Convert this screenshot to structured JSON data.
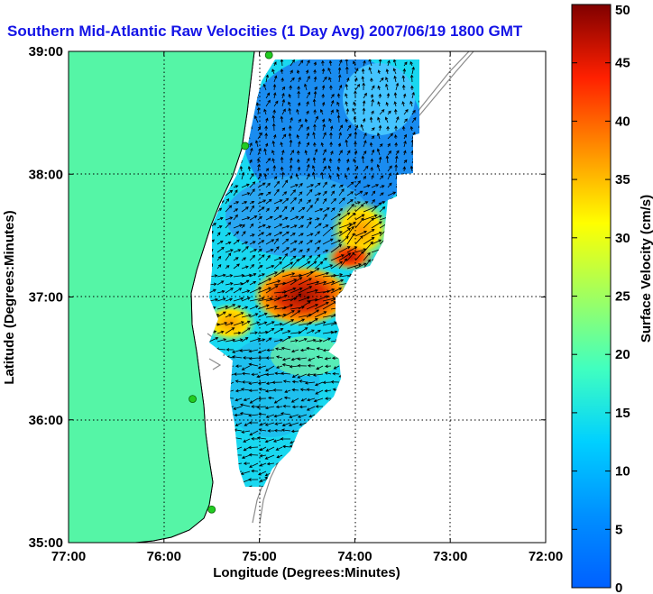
{
  "title": "Southern Mid-Atlantic Raw Velocities (1 Day Avg) 2007/06/19 1800 GMT",
  "colors": {
    "title": "#1414e6",
    "land": "#55f5a6",
    "coast": "#000000",
    "isobath": "#8c8c8c",
    "site": "#22cc22",
    "vector": "#000000"
  },
  "map": {
    "xlabel": "Longitude (Degrees:Minutes)",
    "ylabel": "Latitude (Degrees:Minutes)",
    "lon_range": [
      -77,
      -72
    ],
    "lat_range": [
      35,
      39
    ],
    "x_ticks": [
      {
        "value": -77,
        "label": "77:00"
      },
      {
        "value": -76,
        "label": "76:00"
      },
      {
        "value": -75,
        "label": "75:00"
      },
      {
        "value": -74,
        "label": "74:00"
      },
      {
        "value": -73,
        "label": "73:00"
      },
      {
        "value": -72,
        "label": "72:00"
      }
    ],
    "y_ticks": [
      {
        "value": 35,
        "label": "35:00"
      },
      {
        "value": 36,
        "label": "36:00"
      },
      {
        "value": 37,
        "label": "37:00"
      },
      {
        "value": 38,
        "label": "38:00"
      },
      {
        "value": 39,
        "label": "39:00"
      }
    ],
    "grid": "dotted",
    "radar_sites": [
      {
        "lon": -74.9,
        "lat": 38.97
      },
      {
        "lon": -75.15,
        "lat": 38.23
      },
      {
        "lon": -75.7,
        "lat": 36.17
      },
      {
        "lon": -75.5,
        "lat": 35.27
      }
    ]
  },
  "colorbar": {
    "label": "Surface Velocity (cm/s)",
    "range": [
      0,
      50
    ],
    "ticks": [
      0,
      5,
      10,
      15,
      20,
      25,
      30,
      35,
      40,
      45,
      50
    ],
    "colormap": "jet",
    "placement": "right"
  }
}
